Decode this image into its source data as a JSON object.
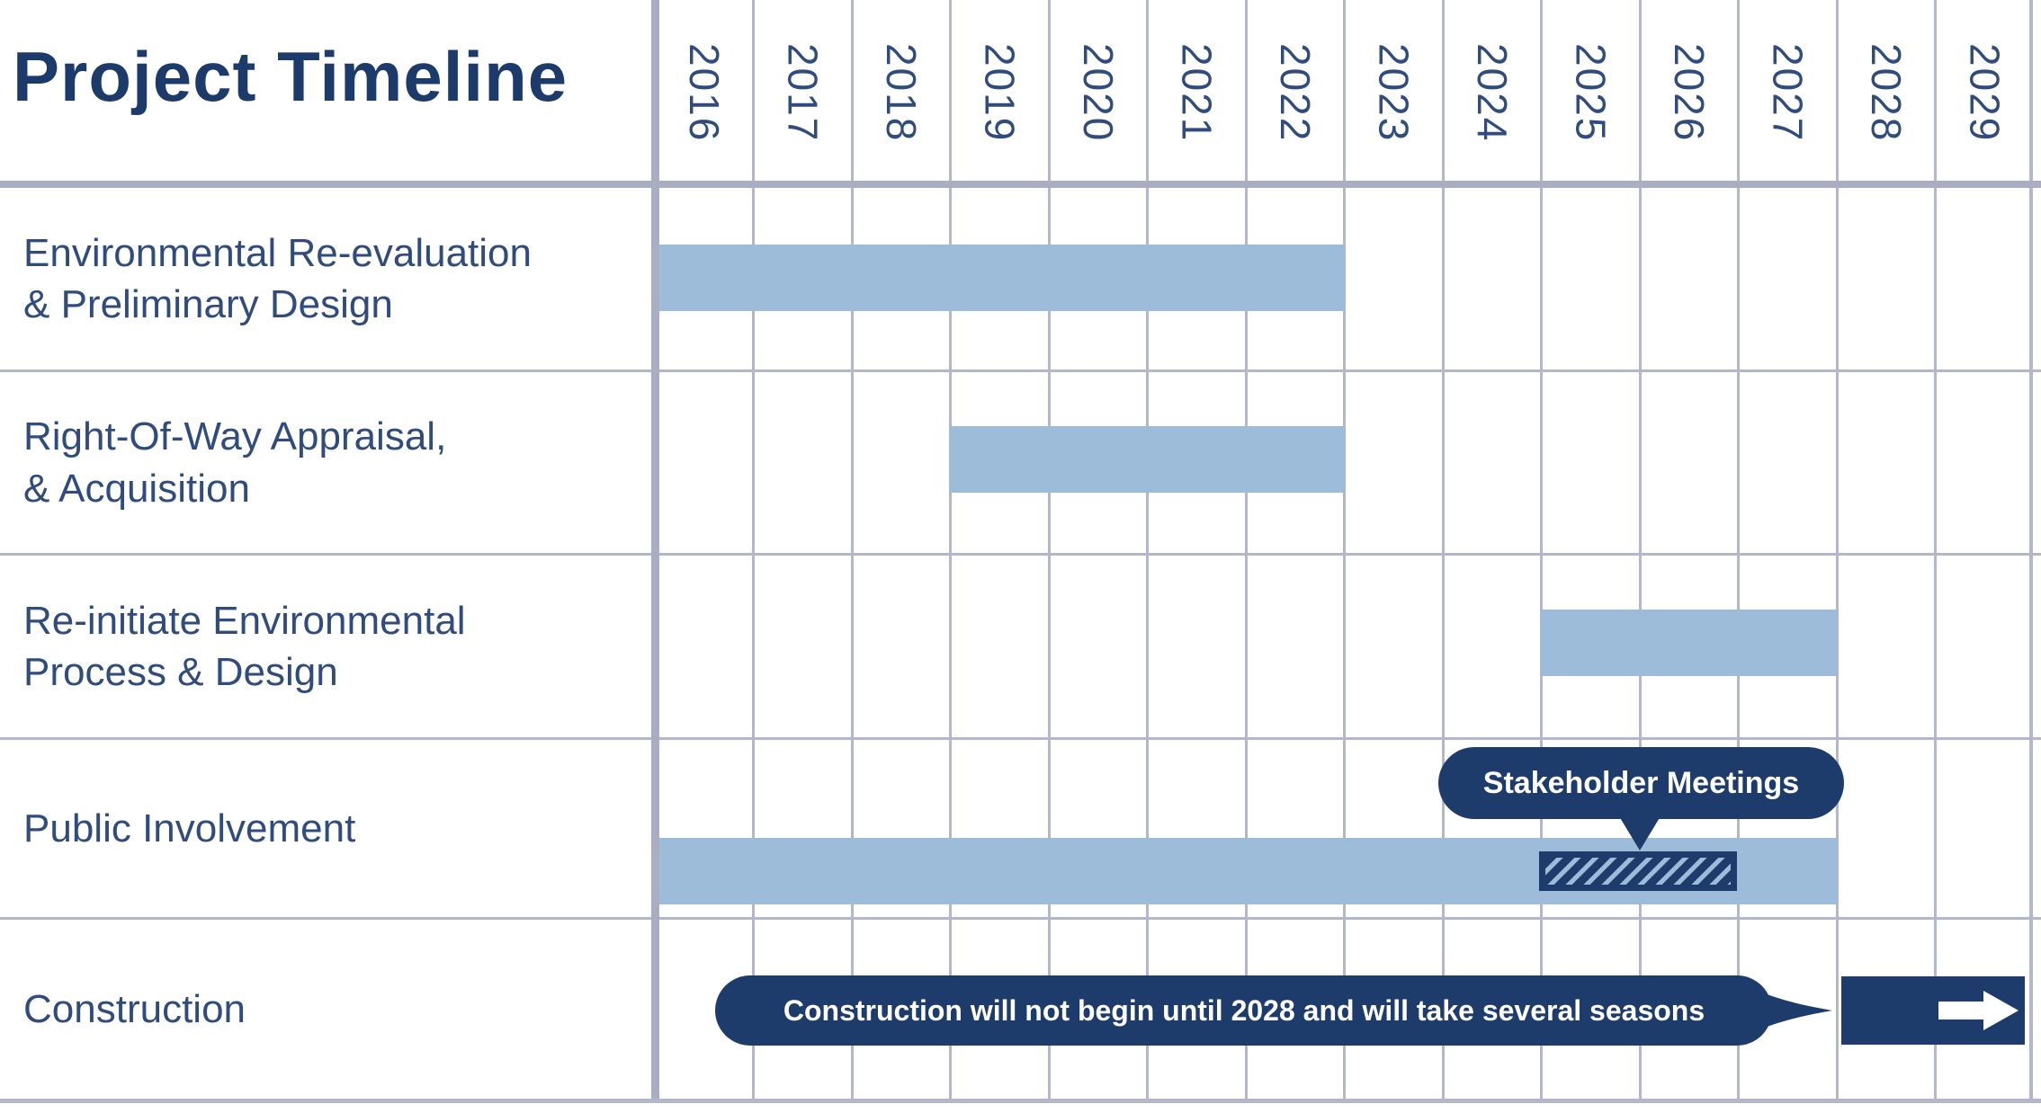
{
  "header": {
    "title": "Project Timeline"
  },
  "timeline": {
    "years": [
      "2016",
      "2017",
      "2018",
      "2019",
      "2020",
      "2021",
      "2022",
      "2023",
      "2024",
      "2025",
      "2026",
      "2027",
      "2028",
      "2029"
    ]
  },
  "chart_data": {
    "type": "gantt",
    "title": "Project Timeline",
    "x_axis": {
      "unit": "year",
      "ticks": [
        2016,
        2017,
        2018,
        2019,
        2020,
        2021,
        2022,
        2023,
        2024,
        2025,
        2026,
        2027,
        2028,
        2029
      ],
      "range": [
        2016,
        2030
      ],
      "tick_label_rotation_deg": 90
    },
    "legend": "none",
    "grid": "on",
    "colors": {
      "bar_fill": "#9cbcda",
      "dark_navy": "#1e3c6b",
      "grid_line": "#b4b7c9",
      "divider_line": "#a9aec3",
      "label_text": "#2f4c7c",
      "title_text": "#1c3a6a",
      "callout_text": "#ffffff"
    },
    "rows": [
      {
        "name": "Environmental Re-evaluation & Preliminary Design",
        "label_lines": [
          "Environmental Re-evaluation",
          "& Preliminary Design"
        ],
        "bar": {
          "start": 2016,
          "end": 2023,
          "style": "solid-light"
        }
      },
      {
        "name": "Right-Of-Way Appraisal, & Acquisition",
        "label_lines": [
          "Right-Of-Way Appraisal,",
          "& Acquisition"
        ],
        "bar": {
          "start": 2019,
          "end": 2023,
          "style": "solid-light"
        }
      },
      {
        "name": "Re-initiate Environmental Process & Design",
        "label_lines": [
          "Re-initiate Environmental",
          "Process & Design"
        ],
        "bar": {
          "start": 2025,
          "end": 2028,
          "style": "solid-light"
        }
      },
      {
        "name": "Public Involvement",
        "label_lines": [
          "Public Involvement"
        ],
        "bar": {
          "start": 2016,
          "end": 2028,
          "style": "solid-light"
        },
        "overlay": {
          "style": "hatched",
          "start": 2025,
          "end": 2027
        },
        "callout": {
          "text": "Stakeholder Meetings",
          "points_to": "overlay"
        }
      },
      {
        "name": "Construction",
        "label_lines": [
          "Construction"
        ],
        "bar": {
          "start": 2028,
          "end": 2030,
          "style": "solid-dark",
          "icon": "right-arrow"
        },
        "callout": {
          "text": "Construction will not begin until 2028 and will take several seasons",
          "points_to": "bar"
        }
      }
    ]
  }
}
